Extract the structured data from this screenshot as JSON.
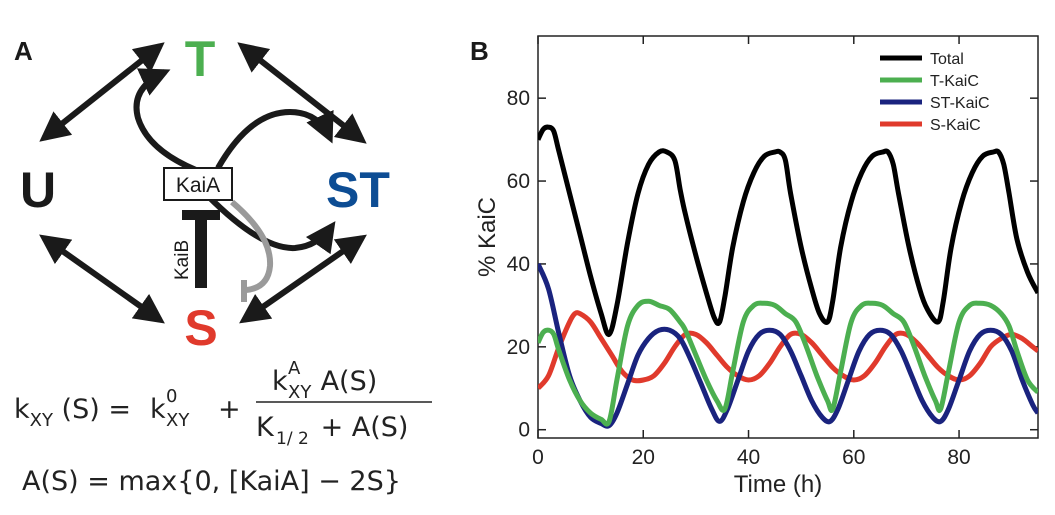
{
  "panel_a": {
    "letter": "A",
    "states": {
      "t": {
        "label": "T",
        "color": "#4caf50"
      },
      "u": {
        "label": "U",
        "color": "#1a1a1a"
      },
      "st": {
        "label": "ST",
        "color": "#0d4d94"
      },
      "s": {
        "label": "S",
        "color": "#e03a2c"
      }
    },
    "kaia_label": "KaiA",
    "kaib_label": "KaiB",
    "equation1": {
      "lhs_k": "k",
      "lhs_sub": "XY",
      "lhs_arg": " (S) = ",
      "k0": "k",
      "k0_sup": "0",
      "k0_sub": "XY",
      "plus": "+",
      "num_k": "k",
      "num_sup": "A",
      "num_sub": "XY",
      "num_rest": " A(S)",
      "den_k": "K",
      "den_sub": "1/ 2",
      "den_rest": " + A(S)"
    },
    "equation2": "A(S) = max{0, [KaiA] − 2S}"
  },
  "chart_data": {
    "panel_letter": "B",
    "type": "line",
    "xlabel": "Time (h)",
    "ylabel": "% KaiC",
    "xlim": [
      0,
      95
    ],
    "ylim": [
      -2,
      95
    ],
    "xticks": [
      0,
      20,
      40,
      60,
      80
    ],
    "yticks": [
      0,
      20,
      40,
      60,
      80
    ],
    "grid": false,
    "legend_position": "top-right",
    "series": [
      {
        "name": "Total",
        "color": "#000000",
        "x": [
          0,
          1,
          2,
          3,
          4,
          6,
          8,
          10,
          12,
          13.5,
          15,
          17,
          19,
          21,
          23,
          24.5,
          26,
          27,
          28,
          30,
          32,
          33.5,
          34.5,
          35.5,
          37,
          39,
          41,
          43,
          45,
          46,
          47,
          48,
          50,
          52,
          53.5,
          55,
          56,
          57.5,
          59.5,
          61.5,
          63.5,
          65.5,
          66.5,
          67.5,
          68.5,
          70.5,
          72.5,
          74,
          76,
          77,
          78.5,
          80.5,
          82.5,
          84.5,
          86.5,
          87.5,
          88.5,
          89.5,
          91,
          93,
          95
        ],
        "y": [
          70,
          72.5,
          73,
          72,
          67,
          57,
          47,
          37,
          28,
          23,
          30,
          45,
          57,
          64,
          67,
          67,
          65,
          58,
          52,
          42,
          33,
          27,
          26,
          32,
          44,
          55,
          62,
          66,
          67,
          67,
          65,
          57,
          44,
          34,
          28,
          26,
          31,
          44,
          55,
          62,
          66,
          67,
          67,
          64,
          57,
          44,
          34,
          29,
          26,
          31,
          44,
          55,
          62,
          66,
          67,
          67,
          64,
          57,
          46,
          38,
          33
        ]
      },
      {
        "name": "T-KaiC",
        "color": "#4caf50",
        "x": [
          0,
          1,
          2,
          3,
          4,
          6,
          8,
          10,
          12,
          13.5,
          15,
          17,
          19,
          21,
          23,
          25,
          27,
          28,
          30,
          32,
          34,
          35.5,
          37,
          39,
          41,
          43,
          45,
          47,
          49,
          51,
          53,
          55,
          56,
          57.5,
          59.5,
          61.5,
          63.5,
          65.5,
          67.5,
          69.5,
          71.5,
          73.5,
          75.5,
          76.5,
          78,
          80,
          82,
          84,
          86,
          88,
          89.5,
          91,
          93,
          95
        ],
        "y": [
          21,
          23.5,
          24,
          23,
          19,
          12,
          7,
          4,
          2.5,
          2,
          12,
          25,
          30,
          31,
          30,
          29,
          26,
          24,
          18,
          12,
          7,
          5,
          14,
          26,
          30,
          30.5,
          30,
          28,
          26,
          20,
          13,
          7,
          5,
          14,
          26,
          30,
          30.5,
          30,
          28,
          26,
          20,
          13,
          7,
          5,
          14,
          26,
          30,
          30.5,
          30,
          28,
          25,
          19,
          12,
          9
        ]
      },
      {
        "name": "ST-KaiC",
        "color": "#1a237e",
        "x": [
          0,
          2,
          4,
          6,
          8,
          10,
          12,
          13.5,
          15,
          17,
          19,
          21,
          23,
          25,
          27,
          29,
          31,
          33,
          34.5,
          36,
          38,
          40,
          42,
          44,
          46,
          48,
          50,
          52,
          54,
          55.5,
          57,
          59,
          61,
          63,
          65,
          67,
          69,
          71,
          73,
          75,
          76.5,
          78,
          80,
          82,
          84,
          86,
          88,
          90,
          92,
          94,
          95
        ],
        "y": [
          40,
          34,
          23,
          13,
          7,
          3,
          1.5,
          1,
          4,
          11,
          18,
          22,
          24,
          24,
          22,
          17,
          11,
          5,
          2,
          5,
          12,
          19,
          23,
          24,
          23,
          19,
          13,
          7,
          3,
          2,
          5,
          12,
          19,
          23,
          24,
          23,
          19,
          13,
          7,
          3,
          2,
          5,
          12,
          19,
          23,
          24,
          23,
          19,
          12,
          6,
          4
        ]
      },
      {
        "name": "S-KaiC",
        "color": "#e03a2c",
        "x": [
          0,
          2,
          4,
          6,
          7,
          8,
          10,
          12,
          14,
          16,
          18,
          20,
          22,
          24,
          26,
          28,
          30,
          32,
          34,
          36,
          38,
          40,
          42,
          44,
          46,
          48,
          50,
          52,
          54,
          56,
          58,
          60,
          62,
          64,
          66,
          68,
          70,
          72,
          74,
          76,
          78,
          80,
          82,
          84,
          86,
          88,
          90,
          92,
          94,
          95
        ],
        "y": [
          10,
          13,
          20,
          26,
          28,
          28,
          26,
          22,
          18,
          14,
          12,
          12,
          13,
          16,
          20,
          23,
          23,
          21,
          18,
          15,
          13,
          12,
          13,
          16,
          20,
          23,
          23,
          21,
          18,
          15,
          13,
          12,
          13,
          16,
          20,
          23,
          23,
          21,
          18,
          15,
          13,
          12,
          13,
          16,
          20,
          22,
          23,
          22,
          20,
          19
        ]
      }
    ]
  }
}
